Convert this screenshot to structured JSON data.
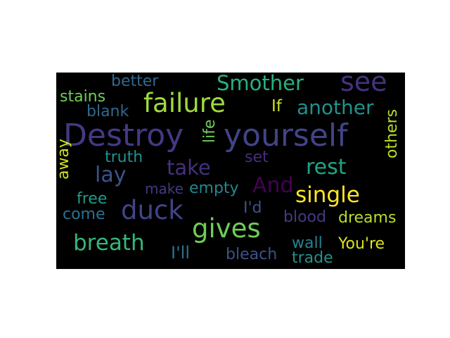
{
  "wordcloud": {
    "background": "#000000",
    "words": [
      {
        "text": "Destroy",
        "color": "#443983"
      },
      {
        "text": "yourself",
        "color": "#414487"
      },
      {
        "text": "failure",
        "color": "#a0da39"
      },
      {
        "text": "see",
        "color": "#46327e"
      },
      {
        "text": "Smother",
        "color": "#2ab07f"
      },
      {
        "text": "another",
        "color": "#21918c"
      },
      {
        "text": "better",
        "color": "#31688e"
      },
      {
        "text": "stains",
        "color": "#6ece58"
      },
      {
        "text": "blank",
        "color": "#31688e"
      },
      {
        "text": "If",
        "color": "#d0e11c"
      },
      {
        "text": "life",
        "color": "#6ece58"
      },
      {
        "text": "truth",
        "color": "#21918c"
      },
      {
        "text": "set",
        "color": "#472d7b"
      },
      {
        "text": "take",
        "color": "#46307e"
      },
      {
        "text": "lay",
        "color": "#3b528b"
      },
      {
        "text": "rest",
        "color": "#20a486"
      },
      {
        "text": "others",
        "color": "#b8de29"
      },
      {
        "text": "away",
        "color": "#d0e11c"
      },
      {
        "text": "make",
        "color": "#443983"
      },
      {
        "text": "empty",
        "color": "#25858e"
      },
      {
        "text": "And",
        "color": "#440154"
      },
      {
        "text": "single",
        "color": "#fde725"
      },
      {
        "text": "free",
        "color": "#1e9b8a"
      },
      {
        "text": "duck",
        "color": "#414487"
      },
      {
        "text": "I'd",
        "color": "#3b528b"
      },
      {
        "text": "come",
        "color": "#2c728e"
      },
      {
        "text": "gives",
        "color": "#6ece58"
      },
      {
        "text": "blood",
        "color": "#443983"
      },
      {
        "text": "dreams",
        "color": "#b8de29"
      },
      {
        "text": "breath",
        "color": "#35b779"
      },
      {
        "text": "wall",
        "color": "#26828e"
      },
      {
        "text": "You're",
        "color": "#dde318"
      },
      {
        "text": "I'll",
        "color": "#2c728e"
      },
      {
        "text": "bleach",
        "color": "#3b528b"
      },
      {
        "text": "trade",
        "color": "#21918c"
      }
    ]
  }
}
